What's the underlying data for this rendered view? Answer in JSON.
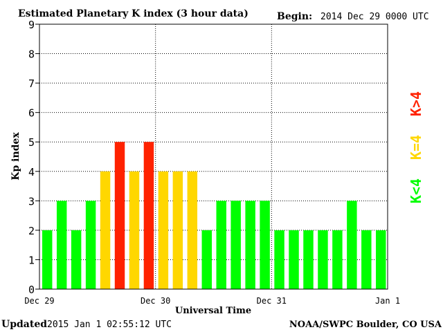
{
  "header": {
    "title": "Estimated Planetary K index (3 hour data)",
    "begin_label": "Begin:",
    "begin_value": "2014 Dec 29 0000 UTC"
  },
  "footer": {
    "updated_label": "Updated",
    "updated_value": "2015 Jan  1 02:55:12 UTC",
    "source": "NOAA/SWPC Boulder, CO USA"
  },
  "legend": {
    "low": "K<4",
    "mid": "K=4",
    "high": "K>4",
    "colors": {
      "low": "#00ff00",
      "mid": "#ffd700",
      "high": "#ff2200"
    }
  },
  "chart_data": {
    "type": "bar",
    "title": "Estimated Planetary K index (3 hour data)",
    "xlabel": "Universal Time",
    "ylabel": "Kp index",
    "ylim": [
      0,
      9
    ],
    "yticks": [
      "0",
      "1",
      "2",
      "3",
      "4",
      "5",
      "6",
      "7",
      "8",
      "9"
    ],
    "xticks": [
      "Dec 29",
      "Dec 30",
      "Dec 31",
      "Jan 1"
    ],
    "values": [
      2,
      3,
      2,
      3,
      4,
      5,
      4,
      5,
      4,
      4,
      4,
      2,
      3,
      3,
      3,
      3,
      2,
      2,
      2,
      2,
      2,
      3,
      2,
      2
    ],
    "grid": true
  }
}
